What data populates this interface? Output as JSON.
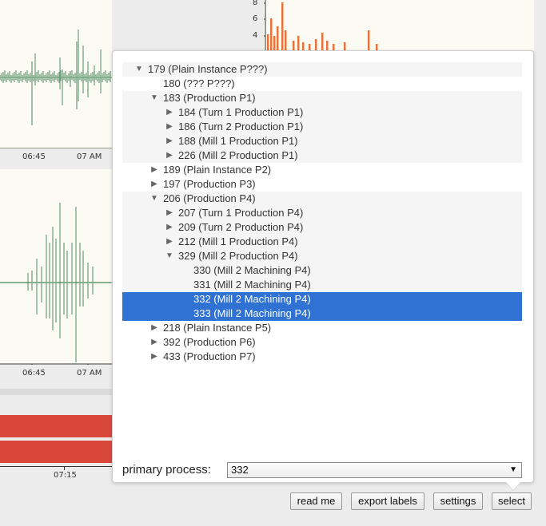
{
  "charts": {
    "top_ticks": [
      "06:45",
      "07 AM"
    ],
    "mid_ticks": [
      "06:45",
      "07 AM"
    ],
    "bottom_ticks": [
      "07:15"
    ],
    "right_y_ticks": [
      "8",
      "6",
      "4"
    ],
    "colors": {
      "green": "#6b9e78",
      "orange": "#e8743b",
      "red": "#d9473b"
    }
  },
  "tree": {
    "items": [
      {
        "label": "179 (Plain Instance P???)",
        "depth": 0,
        "state": "expanded"
      },
      {
        "label": "180 (??? P???)",
        "depth": 1,
        "state": "leaf"
      },
      {
        "label": "183 (Production P1)",
        "depth": 1,
        "state": "expanded"
      },
      {
        "label": "184 (Turn 1 Production P1)",
        "depth": 2,
        "state": "collapsed"
      },
      {
        "label": "186 (Turn 2 Production P1)",
        "depth": 2,
        "state": "collapsed"
      },
      {
        "label": "188 (Mill 1 Production P1)",
        "depth": 2,
        "state": "collapsed"
      },
      {
        "label": "226 (Mill 2 Production P1)",
        "depth": 2,
        "state": "collapsed"
      },
      {
        "label": "189 (Plain Instance P2)",
        "depth": 1,
        "state": "collapsed"
      },
      {
        "label": "197 (Production P3)",
        "depth": 1,
        "state": "collapsed"
      },
      {
        "label": "206 (Production P4)",
        "depth": 1,
        "state": "expanded"
      },
      {
        "label": "207 (Turn 1 Production P4)",
        "depth": 2,
        "state": "collapsed"
      },
      {
        "label": "209 (Turn 2 Production P4)",
        "depth": 2,
        "state": "collapsed"
      },
      {
        "label": "212 (Mill 1 Production P4)",
        "depth": 2,
        "state": "collapsed"
      },
      {
        "label": "329 (Mill 2 Production P4)",
        "depth": 2,
        "state": "expanded"
      },
      {
        "label": "330 (Mill 2 Machining P4)",
        "depth": 3,
        "state": "leaf"
      },
      {
        "label": "331 (Mill 2 Machining P4)",
        "depth": 3,
        "state": "leaf"
      },
      {
        "label": "332 (Mill 2 Machining P4)",
        "depth": 3,
        "state": "leaf",
        "selected": true
      },
      {
        "label": "333 (Mill 2 Machining P4)",
        "depth": 3,
        "state": "leaf",
        "selected": true
      },
      {
        "label": "218 (Plain Instance P5)",
        "depth": 1,
        "state": "collapsed"
      },
      {
        "label": "392 (Production P6)",
        "depth": 1,
        "state": "collapsed"
      },
      {
        "label": "433 (Production P7)",
        "depth": 1,
        "state": "collapsed"
      }
    ]
  },
  "primary_process": {
    "label": "primary process:",
    "value": "332"
  },
  "buttons": {
    "read_me": "read me",
    "export_labels": "export labels",
    "settings": "settings",
    "select": "select"
  },
  "icons": {
    "expanded": "triangle-down-icon",
    "collapsed": "triangle-right-icon",
    "dropdown": "caret-down-icon"
  }
}
